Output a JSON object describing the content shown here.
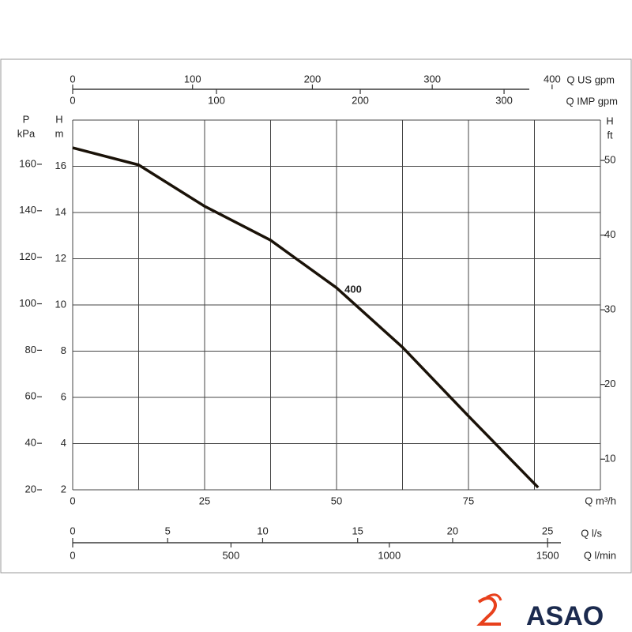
{
  "chart_data": {
    "type": "line",
    "x": [
      0,
      12.5,
      25,
      37.5,
      50,
      62.5,
      75,
      88.2
    ],
    "series": [
      {
        "name": "400",
        "color": "#1a1208",
        "values": [
          16.8,
          16.06,
          14.27,
          12.8,
          10.74,
          8.17,
          5.19,
          2.1
        ]
      }
    ],
    "xlim": [
      0,
      100
    ],
    "xticks": [
      0,
      25,
      50,
      75
    ],
    "x_label": "Q m³/h",
    "ylim": [
      2,
      18
    ],
    "yticks": [
      2,
      4,
      6,
      8,
      10,
      12,
      14,
      16
    ],
    "y_label_top": "H",
    "y_label_unit": "m",
    "x_minor_grid": [
      12.5,
      37.5,
      62.5,
      87.5,
      100
    ],
    "y_minor_grid": [
      18
    ],
    "grid": true,
    "pressure_axis": {
      "label_top": "P",
      "label_unit": "kPa",
      "lim": [
        20,
        179
      ],
      "ticks": [
        20,
        40,
        60,
        80,
        100,
        120,
        140,
        160
      ]
    },
    "feet_axis": {
      "label_top": "H",
      "label_unit": "ft",
      "lim": [
        5.9,
        55.4
      ],
      "ticks": [
        10,
        20,
        30,
        40,
        50
      ]
    },
    "us_gpm_axis": {
      "label": "Q US gpm",
      "lim": [
        0,
        440.3
      ],
      "ticks": [
        0,
        100,
        200,
        300,
        400
      ]
    },
    "imp_gpm_axis": {
      "label": "Q IMP gpm",
      "lim": [
        0,
        367
      ],
      "ticks": [
        0,
        100,
        200,
        300
      ]
    },
    "ls_axis": {
      "label": "Q l/s",
      "lim": [
        0,
        27.78
      ],
      "ticks": [
        0,
        5,
        10,
        15,
        20,
        25
      ]
    },
    "lmin_axis": {
      "label": "Q l/min",
      "lim": [
        0,
        1666.7
      ],
      "ticks": [
        0,
        500,
        1000,
        1500
      ]
    }
  },
  "logo": {
    "text": "ASAO"
  }
}
